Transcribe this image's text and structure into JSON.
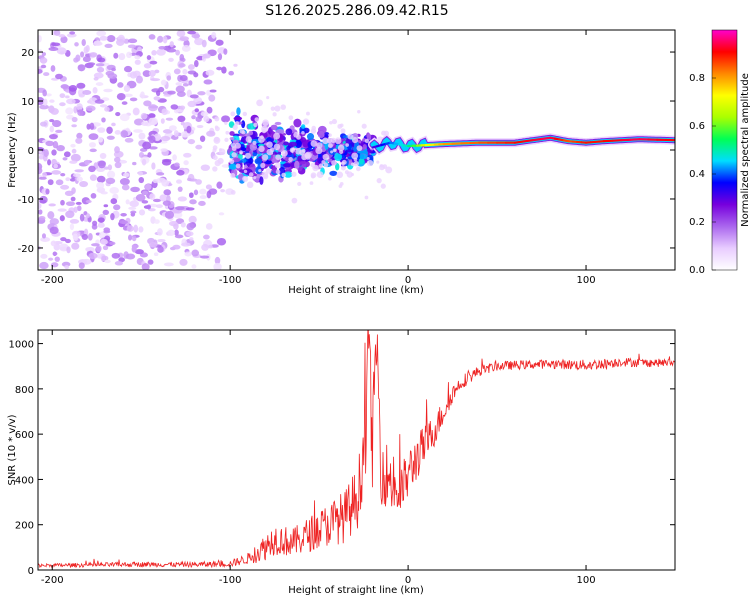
{
  "title": "S126.2025.286.09.42.R15",
  "chart_data": [
    {
      "type": "heatmap",
      "name": "spectrogram",
      "xlabel": "Height of straight line (km)",
      "ylabel": "Frequency (Hz)",
      "xlim": [
        -208,
        150
      ],
      "ylim": [
        -24.5,
        24.5
      ],
      "xticks": [
        -200,
        -100,
        0,
        100
      ],
      "yticks": [
        -20,
        -10,
        0,
        10,
        20
      ],
      "colorbar": {
        "label": "Normalized spectral amplitude",
        "range": [
          0,
          1
        ],
        "ticks": [
          "0.0",
          "0.2",
          "0.4",
          "0.6",
          "0.8"
        ],
        "tick_values": [
          0.0,
          0.2,
          0.4,
          0.6,
          0.8
        ],
        "colors": [
          "#ffffff",
          "#e8ccff",
          "#aa66ee",
          "#7700dd",
          "#0000ff",
          "#00ddff",
          "#00ff55",
          "#aaff00",
          "#ffff00",
          "#ff8800",
          "#ff0000",
          "#ff00cc"
        ]
      },
      "carrier_trace": {
        "x": [
          -20,
          -10,
          0,
          10,
          20,
          40,
          60,
          80,
          90,
          100,
          110,
          130,
          150
        ],
        "freq": [
          0.5,
          1.5,
          0.8,
          1.0,
          1.2,
          1.5,
          1.5,
          2.5,
          1.8,
          1.5,
          1.8,
          2.2,
          2.0
        ],
        "amplitude": [
          0.3,
          0.4,
          0.5,
          0.7,
          0.8,
          0.85,
          0.9,
          0.95,
          0.85,
          0.9,
          0.9,
          0.95,
          0.9
        ]
      },
      "noise_region": {
        "x_range": [
          -208,
          -100
        ],
        "freq_range": [
          -24,
          24
        ],
        "amplitude": 0.15
      },
      "scatter_region": {
        "x_range": [
          -100,
          -20
        ],
        "freq_range": [
          -10,
          8
        ],
        "amplitude": 0.3
      }
    },
    {
      "type": "line",
      "name": "snr",
      "xlabel": "Height of straight line (km)",
      "ylabel": "SNR (10 * v/v)",
      "xlim": [
        -208,
        150
      ],
      "ylim": [
        0,
        1060
      ],
      "xticks": [
        -200,
        -100,
        0,
        100
      ],
      "yticks": [
        0,
        200,
        400,
        600,
        800,
        1000
      ],
      "color": "#ee2222",
      "series": [
        {
          "name": "SNR",
          "x": [
            -208,
            -180,
            -150,
            -120,
            -100,
            -90,
            -82,
            -75,
            -65,
            -55,
            -45,
            -35,
            -28,
            -24,
            -22,
            -20,
            -18,
            -15,
            -10,
            -5,
            0,
            5,
            10,
            15,
            20,
            25,
            30,
            40,
            50,
            60,
            80,
            100,
            110,
            120,
            130,
            150
          ],
          "y": [
            20,
            22,
            25,
            24,
            28,
            50,
            90,
            140,
            120,
            160,
            200,
            240,
            330,
            600,
            1050,
            500,
            1050,
            450,
            400,
            330,
            420,
            500,
            560,
            620,
            700,
            780,
            830,
            880,
            900,
            905,
            910,
            905,
            910,
            920,
            915,
            915
          ],
          "noise": [
            10,
            12,
            14,
            14,
            18,
            30,
            70,
            90,
            80,
            100,
            120,
            150,
            180,
            250,
            200,
            250,
            250,
            200,
            180,
            150,
            140,
            130,
            110,
            90,
            70,
            50,
            40,
            30,
            25,
            25,
            25,
            30,
            30,
            25,
            25,
            20
          ]
        }
      ]
    }
  ]
}
